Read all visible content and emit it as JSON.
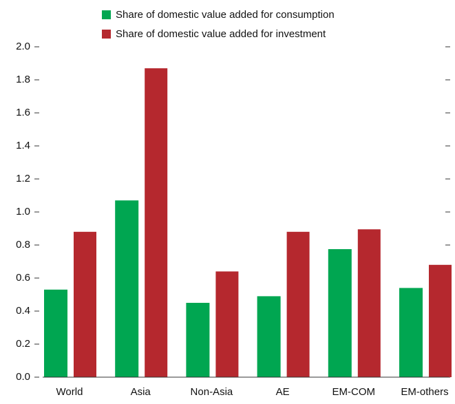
{
  "chart_data": {
    "type": "bar",
    "categories": [
      "World",
      "Asia",
      "Non-Asia",
      "AE",
      "EM-COM",
      "EM-others"
    ],
    "series": [
      {
        "name": "Share of domestic value added for consumption",
        "color": "#00a651",
        "values": [
          0.53,
          1.07,
          0.45,
          0.49,
          0.775,
          0.54
        ]
      },
      {
        "name": "Share of domestic value added for investment",
        "color": "#b5282e",
        "values": [
          0.88,
          1.87,
          0.64,
          0.88,
          0.895,
          0.68
        ]
      }
    ],
    "ylim": [
      0,
      2
    ],
    "yticks": [
      {
        "value": 0,
        "label": "0.0"
      },
      0.2,
      0.4,
      0.6,
      0.8,
      {
        "value": 1,
        "label": "1.0"
      },
      1.2,
      1.4,
      1.6,
      1.8,
      {
        "value": 2,
        "label": "2.0"
      }
    ],
    "legend": "top"
  }
}
